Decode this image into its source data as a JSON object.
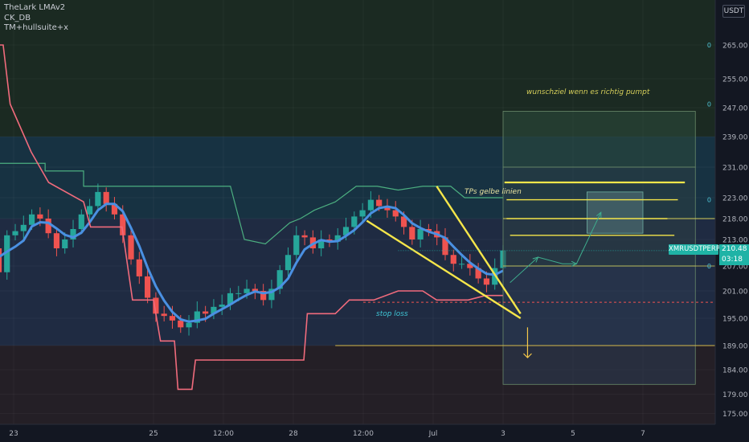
{
  "legend": {
    "lines": [
      "TheLark LMAv2",
      "CK_DB",
      "TM+hullsuite+x"
    ]
  },
  "currency": "USDT",
  "annotations": {
    "target": "wunschziel wenn es richtig pumpt",
    "tps": "TPs gelbe linien",
    "stop": "stop loss"
  },
  "price_label": {
    "symbol": "XMRUSDTPERP",
    "price": "210.48",
    "timer": "03:18"
  },
  "colors": {
    "background": "#131722",
    "bull_candle": "#26a69a",
    "bear_candle": "#ef5350",
    "trendline": "#f5e64a",
    "upper_band": "#4caf80",
    "lower_band": "#f06b7c",
    "accent": "#1fb3a6"
  },
  "chart_data": {
    "type": "candlestick",
    "title": "",
    "xlabel": "",
    "ylabel": "",
    "ylim": [
      172,
      272
    ],
    "y_ticks": [
      265.0,
      255.0,
      247.0,
      239.0,
      231.0,
      223.0,
      218.0,
      213.0,
      207.0,
      201.0,
      195.0,
      189.0,
      184.0,
      179.0,
      175.0
    ],
    "y_tick_labels": [
      "265.00",
      "255.00",
      "247.00",
      "239.00",
      "231.00",
      "223.00",
      "218.00",
      "213.00",
      "207.00",
      "201.00",
      "195.00",
      "189.00",
      "184.00",
      "179.00",
      "175.00"
    ],
    "x_tick_labels": [
      "23",
      "25",
      "12:00",
      "28",
      "12:00",
      "Jul",
      "3",
      "5",
      "7"
    ],
    "x_tick_pos": [
      1.0,
      3.0,
      4.0,
      5.0,
      6.0,
      7.0,
      8.0,
      9.0,
      10.0
    ],
    "x_day_range": [
      0.6,
      10.9
    ],
    "last_candle_day": 8.0,
    "current_price": 210.48,
    "closes": [
      210.5,
      211,
      205.5,
      214,
      215,
      216.5,
      219,
      218,
      214.5,
      211,
      213,
      215.5,
      219,
      221,
      224.5,
      221.5,
      219,
      214,
      208.5,
      204.5,
      199.5,
      196,
      195.5,
      194.5,
      193,
      194,
      196.5,
      196,
      197.5,
      198,
      200.5,
      200.5,
      201.5,
      201,
      199,
      201.5,
      206,
      209.5,
      214,
      213.5,
      211,
      213,
      212.5,
      214,
      216,
      218.5,
      220,
      222.5,
      221,
      220,
      218.5,
      216,
      213,
      215.5,
      215,
      213.5,
      209.5,
      207.5,
      207.5,
      206.5,
      204,
      202.5,
      206.5,
      210.5
    ],
    "resistance_levels": [
      265,
      247,
      239,
      231,
      223,
      218,
      213
    ],
    "support_levels": [
      207,
      189,
      184
    ],
    "take_profits": [
      227,
      222.5,
      218,
      214
    ],
    "stop_loss": 198.5,
    "target_zone": [
      224.5,
      214.5
    ],
    "trendline_upper": [
      [
        7.05,
        226
      ],
      [
        8.25,
        196
      ]
    ],
    "trendline_lower": [
      [
        6.05,
        217.5
      ],
      [
        8.25,
        195
      ]
    ],
    "projection": [
      [
        8.1,
        203
      ],
      [
        8.5,
        209
      ],
      [
        8.85,
        207.5
      ],
      [
        9.05,
        207.5
      ],
      [
        9.4,
        219.5
      ]
    ]
  }
}
